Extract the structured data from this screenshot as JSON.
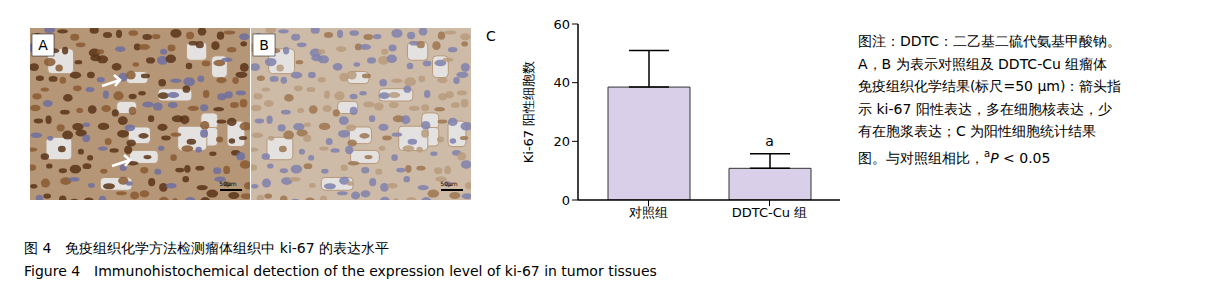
{
  "panels": [
    {
      "label": "A",
      "scale_bar": "50μm"
    },
    {
      "label": "B",
      "scale_bar": "50μm"
    }
  ],
  "chart_data": {
    "type": "bar",
    "panel_label": "C",
    "y_label": "Ki-67 阳性细胞数",
    "categories": [
      "对照组",
      "DDTC-Cu 组"
    ],
    "values": [
      38.5,
      10.8
    ],
    "errors": [
      12.5,
      5
    ],
    "color": "#d9cfe9",
    "ylim": [
      0,
      60
    ],
    "yticks": [
      0,
      20,
      40,
      60
    ],
    "annotations": [
      {
        "category": "DDTC-Cu 组",
        "text": "a"
      }
    ]
  },
  "note": [
    [
      {
        "text": "图注：DDTC：二乙基二硫代氨基甲酸钠。"
      }
    ],
    [
      {
        "text": "A，B 为表示对照组及 DDTC-Cu 组瘤体"
      }
    ],
    [
      {
        "text": "免疫组织化学结果(标尺=50 μm)：箭头指"
      }
    ],
    [
      {
        "text": "示 ki-67 阳性表达，多在细胞核表达，少"
      }
    ],
    [
      {
        "text": "有在胞浆表达；C 为阳性细胞统计结果"
      }
    ],
    [
      {
        "text": "图。与对照组相比，"
      },
      {
        "text": "a",
        "format": "sup"
      },
      {
        "text": "P",
        "format": "italic"
      },
      {
        "text": " < 0.05"
      }
    ]
  ],
  "caption": {
    "zh": "图 4　免疫组织化学方法检测瘤体组织中 ki-67 的表达水平",
    "en": "Figure 4　Immunohistochemical detection of the expression level of ki-67 in tumor tissues"
  }
}
